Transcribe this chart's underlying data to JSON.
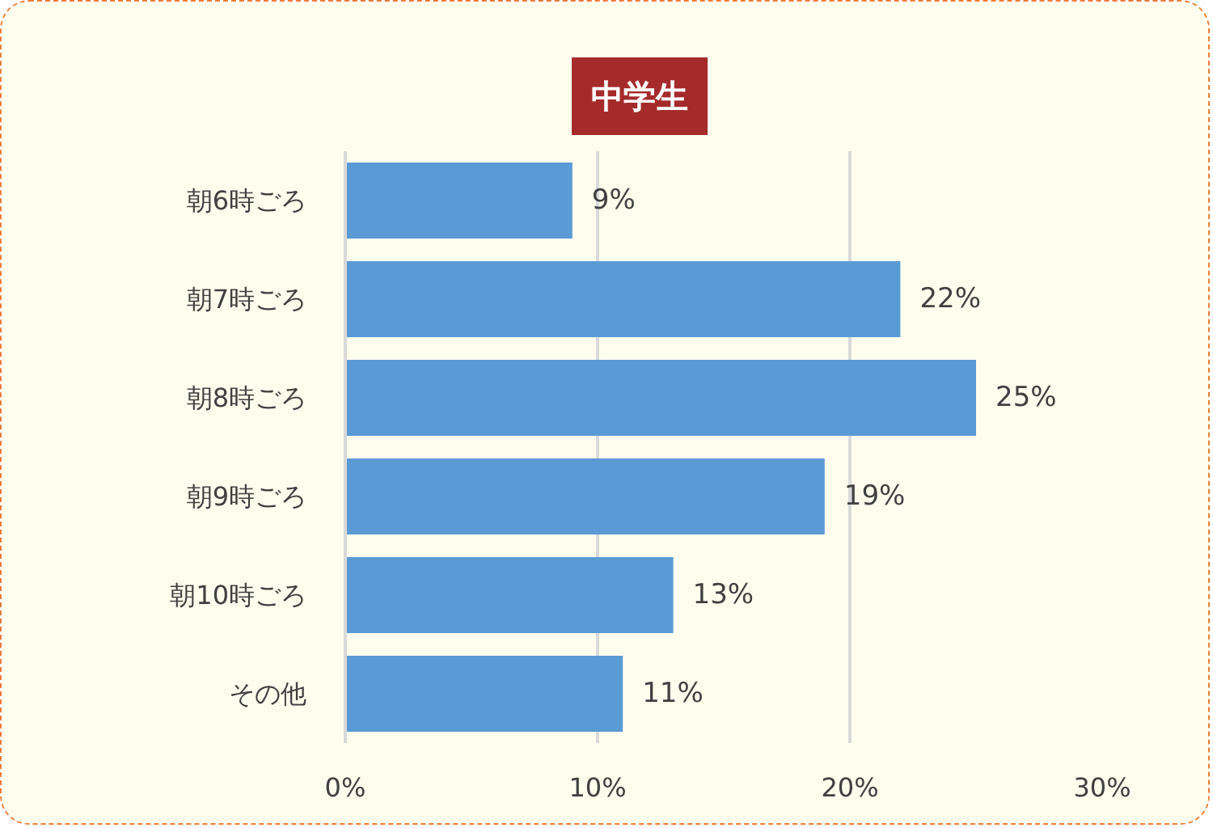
{
  "chart_data": {
    "type": "bar",
    "orientation": "horizontal",
    "title": "中学生",
    "categories": [
      "朝6時ごろ",
      "朝7時ごろ",
      "朝8時ごろ",
      "朝9時ごろ",
      "朝10時ごろ",
      "その他"
    ],
    "values": [
      9,
      22,
      25,
      19,
      13,
      11
    ],
    "value_labels": [
      "9%",
      "22%",
      "25%",
      "19%",
      "13%",
      "11%"
    ],
    "color": "#5b9bd5",
    "xlim": [
      0,
      30
    ],
    "xticks": [
      {
        "value": 0,
        "label": "0%"
      },
      {
        "value": 10,
        "label": "10%"
      },
      {
        "value": 20,
        "label": "20%"
      },
      {
        "value": 30,
        "label": "30%"
      }
    ],
    "grid": "x"
  }
}
